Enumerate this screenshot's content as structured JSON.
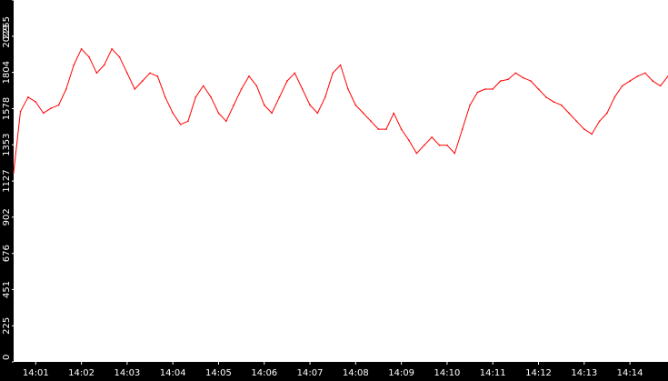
{
  "colors": {
    "background": "#000000",
    "plot_background": "#ffffff",
    "series": "#ff0000",
    "axis_text": "#ffffff"
  },
  "chart_data": {
    "type": "line",
    "title": "",
    "xlabel": "",
    "ylabel": "",
    "ylim": [
      0,
      2255
    ],
    "yticks": [
      0,
      225,
      451,
      676,
      902,
      1127,
      1353,
      1578,
      1804,
      2029,
      2255
    ],
    "xlim": [
      "14:00:31",
      "14:14:50"
    ],
    "xticks": [
      "14:01",
      "14:02",
      "14:03",
      "14:04",
      "14:05",
      "14:06",
      "14:07",
      "14:08",
      "14:09",
      "14:10",
      "14:11",
      "14:12",
      "14:13",
      "14:14"
    ],
    "grid": false,
    "legend": "none",
    "series": [
      {
        "time": [
          "14:00:31",
          "14:00:40",
          "14:00:50",
          "14:01:00",
          "14:01:10",
          "14:01:20",
          "14:01:30",
          "14:01:40",
          "14:01:50",
          "14:02:00",
          "14:02:10",
          "14:02:20",
          "14:02:30",
          "14:02:40",
          "14:02:50",
          "14:03:00",
          "14:03:10",
          "14:03:20",
          "14:03:30",
          "14:03:40",
          "14:03:50",
          "14:04:00",
          "14:04:10",
          "14:04:20",
          "14:04:30",
          "14:04:40",
          "14:04:50",
          "14:05:00",
          "14:05:10",
          "14:05:20",
          "14:05:30",
          "14:05:40",
          "14:05:50",
          "14:06:00",
          "14:06:10",
          "14:06:20",
          "14:06:30",
          "14:06:40",
          "14:06:50",
          "14:07:00",
          "14:07:10",
          "14:07:20",
          "14:07:30",
          "14:07:40",
          "14:07:50",
          "14:08:00",
          "14:08:10",
          "14:08:20",
          "14:08:30",
          "14:08:40",
          "14:08:50",
          "14:09:00",
          "14:09:10",
          "14:09:20",
          "14:09:30",
          "14:09:40",
          "14:09:50",
          "14:10:00",
          "14:10:10",
          "14:10:20",
          "14:10:30",
          "14:10:40",
          "14:10:50",
          "14:11:00",
          "14:11:10",
          "14:11:20",
          "14:11:30",
          "14:11:40",
          "14:11:50",
          "14:12:00",
          "14:12:10",
          "14:12:20",
          "14:12:30",
          "14:12:40",
          "14:12:50",
          "14:13:00",
          "14:13:10",
          "14:13:20",
          "14:13:30",
          "14:13:40",
          "14:13:50",
          "14:14:00",
          "14:14:10",
          "14:14:20",
          "14:14:30",
          "14:14:40",
          "14:14:50"
        ],
        "values": [
          1180,
          1560,
          1650,
          1620,
          1550,
          1580,
          1600,
          1700,
          1850,
          1950,
          1900,
          1800,
          1850,
          1950,
          1900,
          1800,
          1700,
          1750,
          1800,
          1780,
          1650,
          1550,
          1480,
          1500,
          1650,
          1720,
          1650,
          1550,
          1500,
          1600,
          1700,
          1780,
          1720,
          1600,
          1550,
          1650,
          1750,
          1800,
          1700,
          1600,
          1550,
          1650,
          1800,
          1850,
          1700,
          1600,
          1550,
          1500,
          1450,
          1450,
          1550,
          1450,
          1380,
          1300,
          1350,
          1400,
          1350,
          1350,
          1300,
          1450,
          1600,
          1680,
          1700,
          1700,
          1750,
          1760,
          1800,
          1770,
          1750,
          1700,
          1650,
          1620,
          1600,
          1550,
          1500,
          1450,
          1420,
          1500,
          1550,
          1650,
          1720,
          1750,
          1780,
          1800,
          1750,
          1720,
          1780
        ]
      }
    ]
  }
}
